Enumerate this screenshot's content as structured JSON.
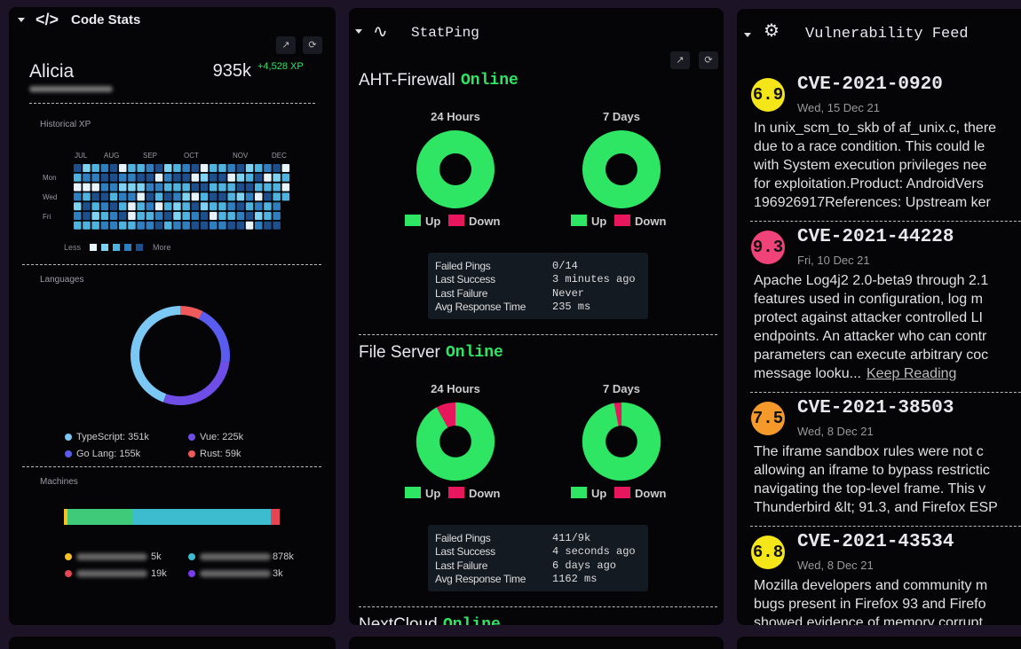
{
  "code_stats": {
    "title": "Code Stats",
    "user": "Alicia",
    "xp": "935k",
    "xp_gain": "+4,528 XP",
    "historical_label": "Historical XP",
    "months": [
      "JUL",
      "AUG",
      "SEP",
      "OCT",
      "NOV",
      "DEC"
    ],
    "days": [
      "Mon",
      "Wed",
      "Fri"
    ],
    "less": "Less",
    "more": "More",
    "languages_label": "Languages",
    "languages": [
      {
        "label": "TypeScript: 351k",
        "value": 351000,
        "color": "#7cc8f4"
      },
      {
        "label": "Vue: 225k",
        "value": 225000,
        "color": "#6f4ee8"
      },
      {
        "label": "Go Lang: 155k",
        "value": 155000,
        "color": "#5a5cf0"
      },
      {
        "label": "Rust: 59k",
        "value": 59000,
        "color": "#ef5a5a"
      }
    ],
    "machines_label": "Machines",
    "machines": [
      {
        "label": "5k",
        "color": "#f6c026"
      },
      {
        "label": "878k",
        "color": "#3dbccf"
      },
      {
        "label": "19k",
        "color": "#e64553"
      },
      {
        "label": "3k",
        "color": "#7c3aed"
      }
    ]
  },
  "statping": {
    "title": "StatPing",
    "h24_label": "24 Hours",
    "d7_label": "7 Days",
    "up": "Up",
    "down": "Down",
    "row_labels": [
      "Failed Pings",
      "Last Success",
      "Last Failure",
      "Avg Response Time"
    ],
    "services": [
      {
        "name": "AHT-Firewall",
        "status": "Online",
        "h24_up": 100,
        "d7_up": 100,
        "rows": [
          "0/14",
          "3 minutes ago",
          "Never",
          "235 ms"
        ]
      },
      {
        "name": "File Server",
        "status": "Online",
        "h24_up": 92,
        "d7_up": 97,
        "rows": [
          "411/9k",
          "4 seconds ago",
          "6 days ago",
          "1162 ms"
        ]
      },
      {
        "name": "NextCloud",
        "status": "Online"
      }
    ]
  },
  "vulnerability_feed": {
    "title": "Vulnerability Feed",
    "link": "Keep Reading",
    "items": [
      {
        "score": "6.9",
        "color": "#f5e61a",
        "cve": "CVE-2021-0920",
        "date": "Wed, 15 Dec 21",
        "lines": [
          "In unix_scm_to_skb of af_unix.c, there",
          "due to a race condition. This could le",
          "with System execution privileges nee",
          "for exploitation.Product: AndroidVers",
          "196926917References: Upstream ker"
        ]
      },
      {
        "score": "9.3",
        "color": "#f0437a",
        "cve": "CVE-2021-44228",
        "date": "Fri, 10 Dec 21",
        "lines": [
          "Apache Log4j2 2.0-beta9 through 2.1",
          "features used in configuration, log m",
          "protect against attacker controlled LI",
          "endpoints. An attacker who can contr",
          "parameters can execute arbitrary coc",
          "message looku..."
        ],
        "has_link": true
      },
      {
        "score": "7.5",
        "color": "#f59a2a",
        "cve": "CVE-2021-38503",
        "date": "Wed, 8 Dec 21",
        "lines": [
          "The iframe sandbox rules were not c",
          "allowing an iframe to bypass restrictic",
          "navigating the top-level frame. This v",
          "Thunderbird &lt; 91.3, and Firefox ESP"
        ]
      },
      {
        "score": "6.8",
        "color": "#f5e61a",
        "cve": "CVE-2021-43534",
        "date": "Wed, 8 Dec 21",
        "lines": [
          "Mozilla developers and community m",
          "bugs present in Firefox 93 and Firefo",
          "showed evidence of memory corrupt"
        ]
      }
    ]
  }
}
